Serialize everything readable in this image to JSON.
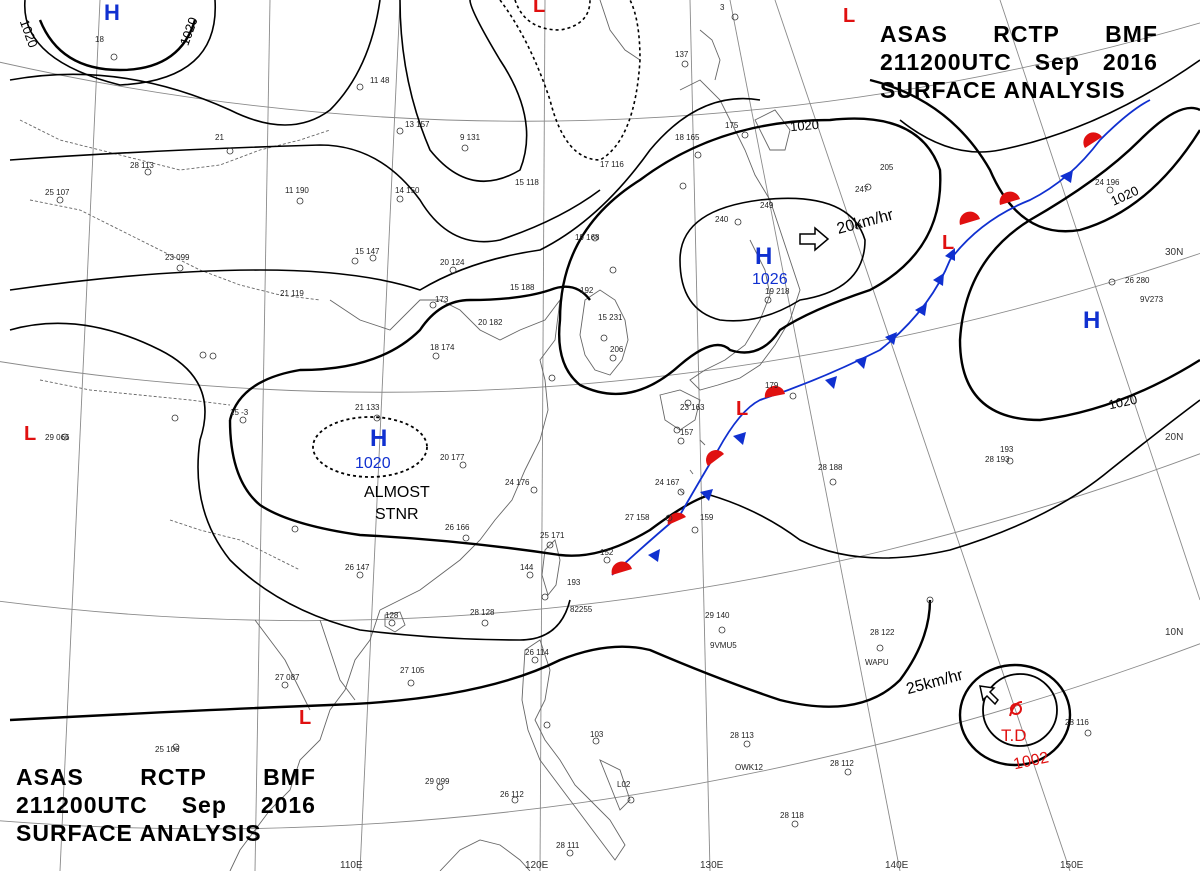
{
  "header_top": {
    "line1": [
      "ASAS",
      "RCTP",
      "BMF"
    ],
    "line2": [
      "211200UTC",
      "Sep",
      "2016"
    ],
    "line3": "SURFACE ANALYSIS"
  },
  "header_bottom": {
    "line1": [
      "ASAS",
      "RCTP",
      "BMF"
    ],
    "line2": [
      "211200UTC",
      "Sep",
      "2016"
    ],
    "line3": "SURFACE ANALYSIS"
  },
  "pressure_centers": [
    {
      "type": "H",
      "pressure": "1026",
      "color": "#1030d0"
    },
    {
      "type": "H",
      "pressure": "1020",
      "color": "#1030d0"
    },
    {
      "type": "H",
      "pressure": "",
      "color": "#1030d0"
    },
    {
      "type": "H",
      "pressure": "",
      "color": "#1030d0"
    },
    {
      "type": "L",
      "pressure": "",
      "color": "#e01010"
    },
    {
      "type": "L",
      "pressure": "",
      "color": "#e01010"
    },
    {
      "type": "L",
      "pressure": "",
      "color": "#e01010"
    },
    {
      "type": "L",
      "pressure": "",
      "color": "#e01010"
    },
    {
      "type": "L",
      "pressure": "",
      "color": "#e01010"
    }
  ],
  "tropical_depression": {
    "label": "T.D",
    "pressure": "1002",
    "color": "#e01010"
  },
  "annotations": {
    "motion_h": "20km/hr",
    "motion_td": "25km/hr",
    "almost": "ALMOST",
    "stnr": "STNR"
  },
  "isobar_labels": [
    "1020",
    "1020",
    "1020",
    "1020",
    "1020"
  ],
  "latitude_labels": [
    "30N",
    "20N",
    "10N"
  ],
  "longitude_labels": [
    "110E",
    "120E",
    "130E",
    "140E",
    "150E"
  ],
  "ship_ids": [
    "9VMU5",
    "WAPU",
    "OWK12",
    "9V273"
  ],
  "colors": {
    "high": "#1030d0",
    "low": "#e01010",
    "cold_front": "#1030d0",
    "warm_front": "#e01010",
    "isobar": "#000000"
  }
}
